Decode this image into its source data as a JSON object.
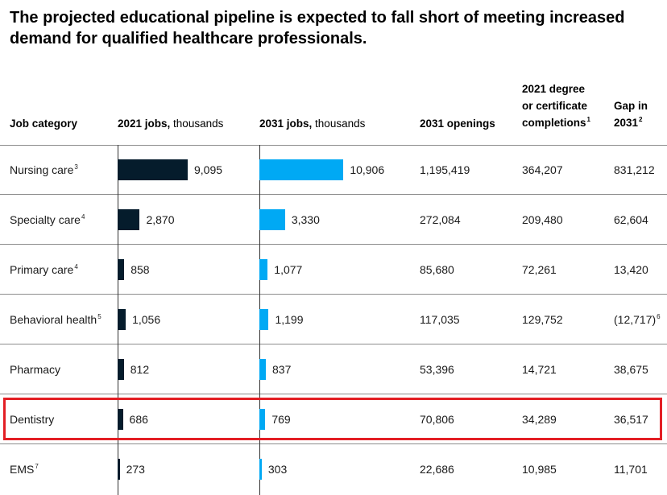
{
  "title": "The projected educational pipeline is expected to fall short of meeting increased demand for qualified healthcare professionals.",
  "columns": {
    "job_category": "Job category",
    "jobs_2021": {
      "bold": "2021 jobs,",
      "unit": " thousands"
    },
    "jobs_2031": {
      "bold": "2031 jobs,",
      "unit": " thousands"
    },
    "openings_2031": "2031 openings",
    "completions_2021": {
      "line1": "2021 degree",
      "line2": "or certificate",
      "line3": "completions",
      "note": "1"
    },
    "gap_2031": {
      "line1": "Gap in",
      "line2": "2031",
      "note": "2"
    }
  },
  "highlight_color": "#e31e24",
  "colors": {
    "jobs_2021": "#051c2c",
    "jobs_2031": "#00a9f4"
  },
  "chart_data": {
    "type": "table",
    "bar_columns": [
      "2021 jobs, thousands",
      "2031 jobs, thousands"
    ],
    "highlighted_row": "Dentistry",
    "rows": [
      {
        "category": "Nursing care",
        "note": "3",
        "jobs_2021": 9095,
        "jobs_2021_label": "9,095",
        "jobs_2031": 10906,
        "jobs_2031_label": "10,906",
        "openings": "1,195,419",
        "completions": "364,207",
        "gap": "831,212",
        "gap_note": ""
      },
      {
        "category": "Specialty care",
        "note": "4",
        "jobs_2021": 2870,
        "jobs_2021_label": "2,870",
        "jobs_2031": 3330,
        "jobs_2031_label": "3,330",
        "openings": "272,084",
        "completions": "209,480",
        "gap": "62,604",
        "gap_note": ""
      },
      {
        "category": "Primary care",
        "note": "4",
        "jobs_2021": 858,
        "jobs_2021_label": "858",
        "jobs_2031": 1077,
        "jobs_2031_label": "1,077",
        "openings": "85,680",
        "completions": "72,261",
        "gap": "13,420",
        "gap_note": ""
      },
      {
        "category": "Behavioral health",
        "note": "5",
        "jobs_2021": 1056,
        "jobs_2021_label": "1,056",
        "jobs_2031": 1199,
        "jobs_2031_label": "1,199",
        "openings": "117,035",
        "completions": "129,752",
        "gap": "(12,717)",
        "gap_note": "6"
      },
      {
        "category": "Pharmacy",
        "note": "",
        "jobs_2021": 812,
        "jobs_2021_label": "812",
        "jobs_2031": 837,
        "jobs_2031_label": "837",
        "openings": "53,396",
        "completions": "14,721",
        "gap": "38,675",
        "gap_note": ""
      },
      {
        "category": "Dentistry",
        "note": "",
        "jobs_2021": 686,
        "jobs_2021_label": "686",
        "jobs_2031": 769,
        "jobs_2031_label": "769",
        "openings": "70,806",
        "completions": "34,289",
        "gap": "36,517",
        "gap_note": ""
      },
      {
        "category": "EMS",
        "note": "7",
        "jobs_2021": 273,
        "jobs_2021_label": "273",
        "jobs_2031": 303,
        "jobs_2031_label": "303",
        "openings": "22,686",
        "completions": "10,985",
        "gap": "11,701",
        "gap_note": ""
      }
    ]
  }
}
